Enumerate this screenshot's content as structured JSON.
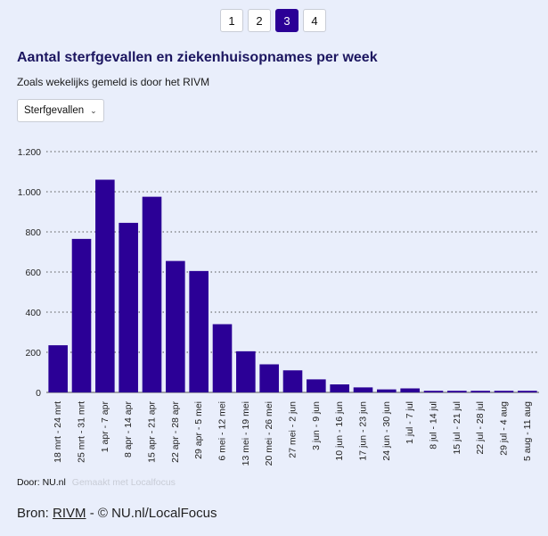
{
  "pager": {
    "pages": [
      "1",
      "2",
      "3",
      "4"
    ],
    "active_index": 2
  },
  "header": {
    "title": "Aantal sterfgevallen en ziekenhuisopnames per week",
    "subtitle": "Zoals wekelijks gemeld is door het RIVM"
  },
  "select": {
    "value": "Sterfgevallen"
  },
  "chart_data": {
    "type": "bar",
    "title": "Aantal sterfgevallen en ziekenhuisopnames per week",
    "xlabel": "",
    "ylabel": "",
    "ylim": [
      0,
      1200
    ],
    "yticks": [
      0,
      200,
      400,
      600,
      800,
      1000,
      1200
    ],
    "ytick_labels": [
      "0",
      "200",
      "400",
      "600",
      "800",
      "1.000",
      "1.200"
    ],
    "grid": true,
    "bar_color": "#2b0096",
    "categories": [
      "18 mrt - 24 mrt",
      "25 mrt - 31 mrt",
      "1 apr - 7 apr",
      "8 apr - 14 apr",
      "15 apr - 21 apr",
      "22 apr - 28 apr",
      "29 apr - 5 mei",
      "6 mei - 12 mei",
      "13 mei - 19 mei",
      "20 mei - 26 mei",
      "27 mei - 2 jun",
      "3 jun - 9 jun",
      "10 jun - 16 jun",
      "17 jun - 23 jun",
      "24 jun - 30 jun",
      "1 jul - 7 jul",
      "8 jul - 14 jul",
      "15 jul - 21 jul",
      "22 jul - 28 jul",
      "29 jul - 4 aug",
      "5 aug - 11 aug"
    ],
    "values": [
      235,
      765,
      1060,
      845,
      975,
      655,
      605,
      340,
      205,
      140,
      110,
      65,
      40,
      25,
      15,
      20,
      8,
      8,
      8,
      8,
      8
    ]
  },
  "credits": {
    "by": "Door: NU.nl",
    "made_with": "Gemaakt met Localfocus"
  },
  "source": {
    "prefix": "Bron: ",
    "link": "RIVM",
    "suffix": " - © NU.nl/LocalFocus"
  }
}
